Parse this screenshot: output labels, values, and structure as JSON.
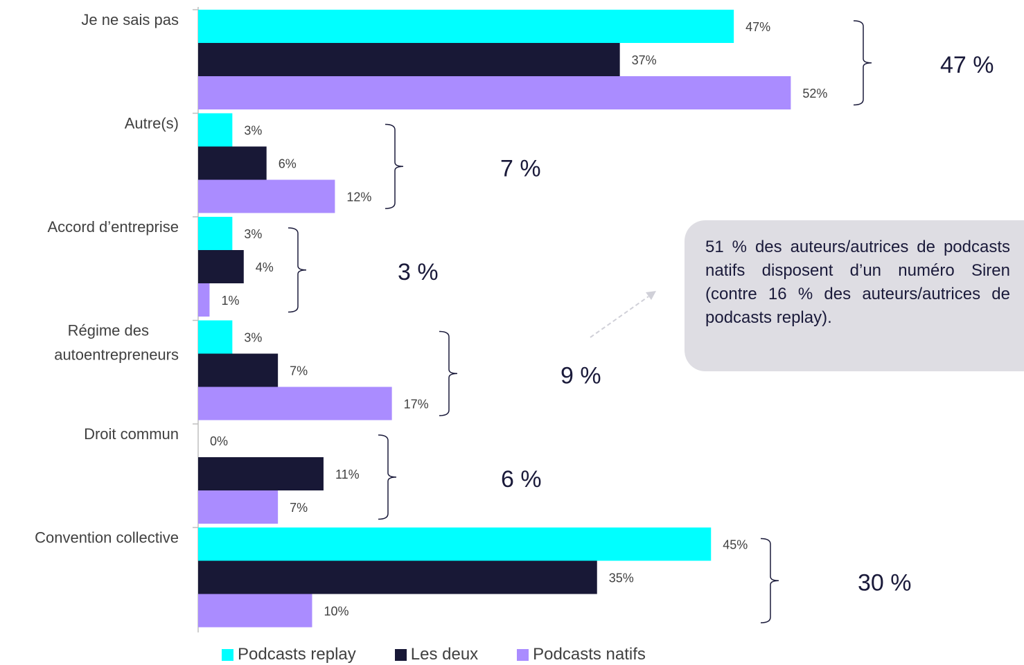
{
  "chart_data": {
    "type": "bar",
    "orientation": "horizontal",
    "categories": [
      "Je ne sais pas",
      "Autre(s)",
      "Accord d’entreprise",
      "Régime des autoentrepreneurs",
      "Droit commun",
      "Convention collective"
    ],
    "series": [
      {
        "name": "Podcasts replay",
        "color": "#00ffff",
        "values": [
          47,
          3,
          3,
          3,
          0,
          45
        ]
      },
      {
        "name": "Les deux",
        "color": "#181836",
        "values": [
          37,
          6,
          4,
          7,
          11,
          35
        ]
      },
      {
        "name": "Podcasts natifs",
        "color": "#aa8cff",
        "values": [
          52,
          12,
          1,
          17,
          7,
          10
        ]
      }
    ],
    "value_suffix": "%",
    "group_totals": [
      "47 %",
      "7 %",
      "3 %",
      "9 %",
      "6 %",
      "30 %"
    ],
    "xlim": [
      0,
      100
    ],
    "grid": false,
    "legend_position": "bottom"
  },
  "callout": {
    "text": "51 % des auteurs/autrices de podcasts natifs disposent d’un numéro Siren (contre 16 % des auteurs/autrices de podcasts replay)."
  }
}
